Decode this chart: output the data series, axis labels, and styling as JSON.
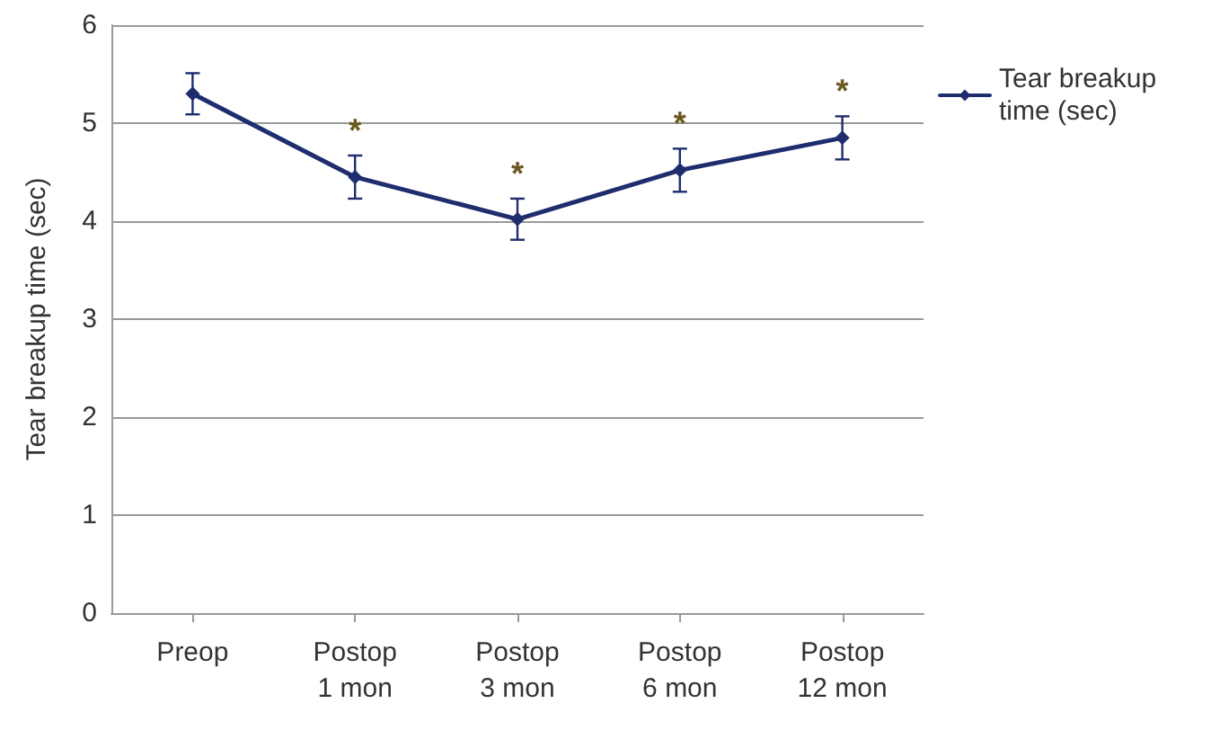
{
  "chart_data": {
    "type": "line",
    "ylabel": "Tear breakup time (sec)",
    "categories": [
      "Preop",
      "Postop\n1 mon",
      "Postop\n3 mon",
      "Postop\n6 mon",
      "Postop\n12 mon"
    ],
    "series": [
      {
        "name": "Tear breakup time (sec)",
        "color": "#1f2d6e",
        "values": [
          5.3,
          4.45,
          4.02,
          4.52,
          4.85
        ],
        "errors": [
          0.21,
          0.22,
          0.21,
          0.22,
          0.22
        ]
      }
    ],
    "annotations": [
      "*",
      "*",
      "*",
      "*"
    ],
    "ylim": [
      0,
      6
    ],
    "yticks": [
      0,
      1,
      2,
      3,
      4,
      5,
      6
    ],
    "grid": "y",
    "legend": "right",
    "marker": "diamond",
    "line_style": "solid"
  }
}
